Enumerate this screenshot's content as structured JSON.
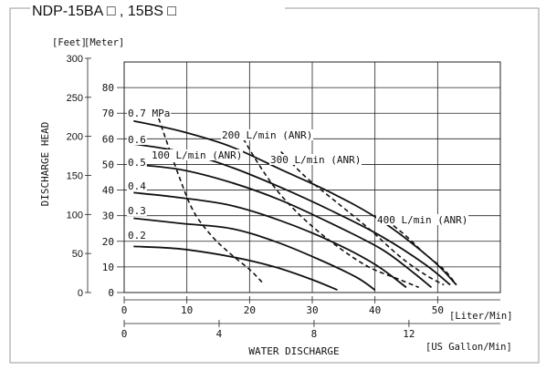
{
  "header": {
    "title": "NDP-15BA □ , 15BS □"
  },
  "chart_data": {
    "type": "line",
    "title": "NDP-15BA □ , 15BS □",
    "xlabel": "WATER DISCHARGE",
    "ylabel": "DISCHARGE HEAD",
    "x_unit_primary": "[Liter/Min]",
    "x_unit_secondary": "[US Gallon/Min]",
    "y_unit_feet": "[Feet]",
    "y_unit_meter": "[Meter]",
    "xlim": [
      0,
      60
    ],
    "ylim": [
      0,
      90
    ],
    "grid": true,
    "x_ticks": [
      0,
      10,
      20,
      30,
      40,
      50
    ],
    "x_ticks_gal": [
      0,
      4,
      8,
      12
    ],
    "y_ticks_meter": [
      0,
      10,
      20,
      30,
      40,
      50,
      60,
      70,
      80
    ],
    "y_ticks_feet": [
      0,
      50,
      100,
      150,
      200,
      250,
      300
    ],
    "series": [
      {
        "name": "0.7 MPa",
        "style": "solid",
        "points": [
          [
            1.5,
            67
          ],
          [
            9,
            63
          ],
          [
            17,
            57
          ],
          [
            25,
            48
          ],
          [
            33,
            39
          ],
          [
            41,
            28
          ],
          [
            49,
            13
          ],
          [
            53,
            3
          ]
        ]
      },
      {
        "name": "0.6",
        "style": "solid",
        "points": [
          [
            1.5,
            58
          ],
          [
            9,
            55
          ],
          [
            17,
            49
          ],
          [
            25,
            41
          ],
          [
            33,
            32
          ],
          [
            41,
            22
          ],
          [
            48,
            11
          ],
          [
            52,
            3
          ]
        ]
      },
      {
        "name": "0.5",
        "style": "solid",
        "points": [
          [
            1.5,
            50
          ],
          [
            9,
            48
          ],
          [
            17,
            43
          ],
          [
            25,
            36
          ],
          [
            33,
            27
          ],
          [
            41,
            17
          ],
          [
            46,
            8
          ],
          [
            49,
            2
          ]
        ]
      },
      {
        "name": "0.4",
        "style": "solid",
        "points": [
          [
            1.5,
            39
          ],
          [
            9,
            37
          ],
          [
            17,
            34
          ],
          [
            25,
            28
          ],
          [
            33,
            20
          ],
          [
            40,
            11
          ],
          [
            45,
            2
          ]
        ]
      },
      {
        "name": "0.3",
        "style": "solid",
        "points": [
          [
            1.5,
            29
          ],
          [
            9,
            27
          ],
          [
            17,
            25
          ],
          [
            24,
            20
          ],
          [
            31,
            13
          ],
          [
            37,
            6
          ],
          [
            40,
            1
          ]
        ]
      },
      {
        "name": "0.2",
        "style": "solid",
        "points": [
          [
            1.5,
            18
          ],
          [
            9,
            17
          ],
          [
            17,
            14
          ],
          [
            24,
            10
          ],
          [
            30,
            5
          ],
          [
            34,
            1
          ]
        ]
      },
      {
        "name": "100 L/min (ANR)",
        "style": "dashed",
        "points": [
          [
            5.5,
            68
          ],
          [
            8.5,
            47
          ],
          [
            11,
            32
          ],
          [
            14,
            22
          ],
          [
            17,
            15
          ],
          [
            20,
            9
          ],
          [
            22,
            4
          ]
        ]
      },
      {
        "name": "200 L/min (ANR)",
        "style": "dashed",
        "points": [
          [
            19,
            60
          ],
          [
            22,
            48
          ],
          [
            25,
            38
          ],
          [
            29,
            28
          ],
          [
            34,
            18
          ],
          [
            39,
            10
          ],
          [
            44,
            5
          ],
          [
            47,
            2
          ]
        ]
      },
      {
        "name": "300 L/min (ANR)",
        "style": "dashed",
        "points": [
          [
            25,
            55
          ],
          [
            29,
            45
          ],
          [
            34,
            35
          ],
          [
            39,
            25
          ],
          [
            44,
            14
          ],
          [
            48,
            7
          ],
          [
            51,
            3
          ]
        ]
      },
      {
        "name": "400 L/min (ANR)",
        "style": "dashed",
        "points": [
          [
            42,
            28
          ],
          [
            45,
            22
          ],
          [
            48,
            15
          ],
          [
            51,
            9
          ],
          [
            53,
            3
          ]
        ]
      }
    ],
    "annotations": [
      "0.7 MPa",
      "0.6",
      "0.5",
      "0.4",
      "0.3",
      "0.2",
      "100 L/min (ANR)",
      "200 L/min (ANR)",
      "300 L/min (ANR)",
      "400 L/min (ANR)"
    ]
  }
}
